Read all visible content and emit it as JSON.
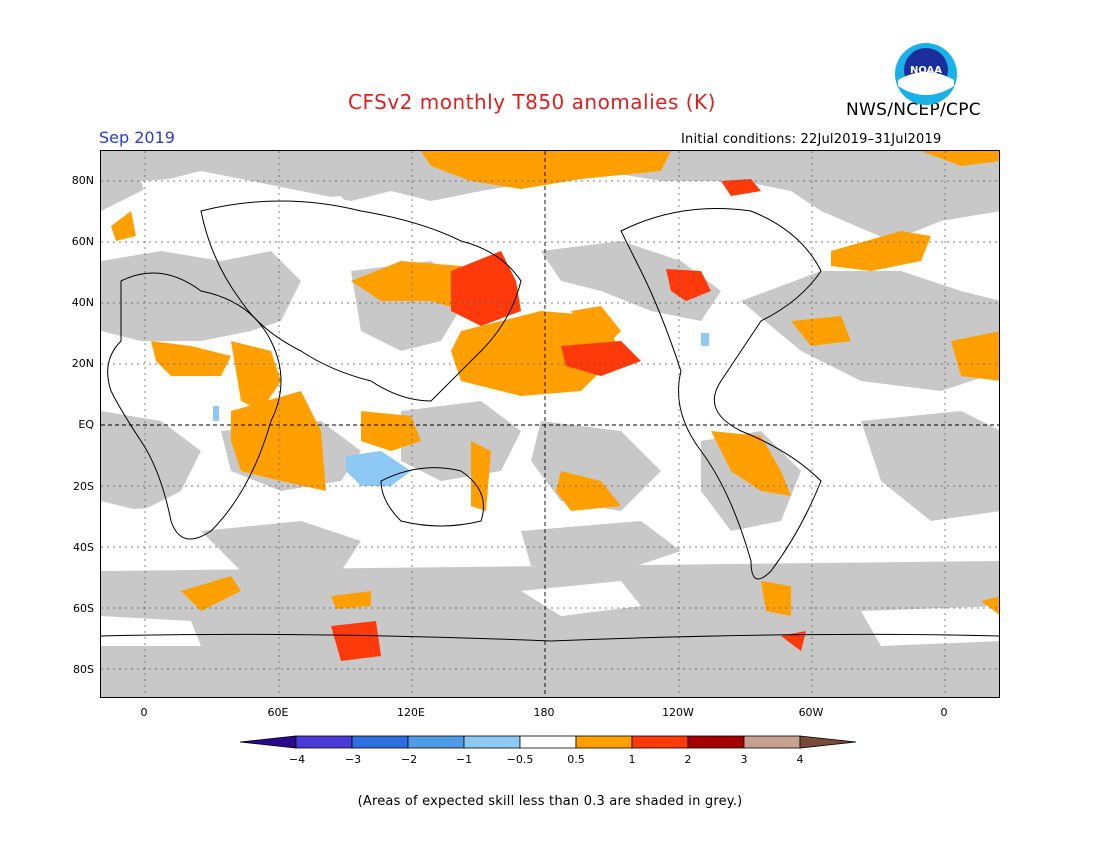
{
  "header": {
    "title": "CFSv2 monthly T850 anomalies (K)",
    "org": "NWS/NCEP/CPC",
    "valid_month": "Sep 2019",
    "initial_conditions": "Initial conditions: 22Jul2019–31Jul2019",
    "logo_text": "NOAA"
  },
  "axes": {
    "lat_labels": [
      "80N",
      "60N",
      "40N",
      "20N",
      "EQ",
      "20S",
      "40S",
      "60S",
      "80S"
    ],
    "lon_labels": [
      "0",
      "60E",
      "120E",
      "180",
      "120W",
      "60W",
      "0"
    ]
  },
  "colorbar": {
    "labels": [
      "−4",
      "−3",
      "−2",
      "−1",
      "−0.5",
      "0.5",
      "1",
      "2",
      "3",
      "4"
    ],
    "colors": [
      "#2a0a8c",
      "#4a3ad6",
      "#2e6fe0",
      "#4e9be8",
      "#8ec8f5",
      "#ffffff",
      "#ffa000",
      "#ff3a0a",
      "#a50000",
      "#c8a090",
      "#7a4a38"
    ]
  },
  "map_colors": {
    "grey": "#c8c8c8",
    "orange": "#ffa000",
    "red": "#ff3a0a",
    "darkred": "#a50000",
    "lightblue": "#8ec8f5"
  },
  "note": "(Areas of expected skill less than 0.3 are shaded in grey.)"
}
